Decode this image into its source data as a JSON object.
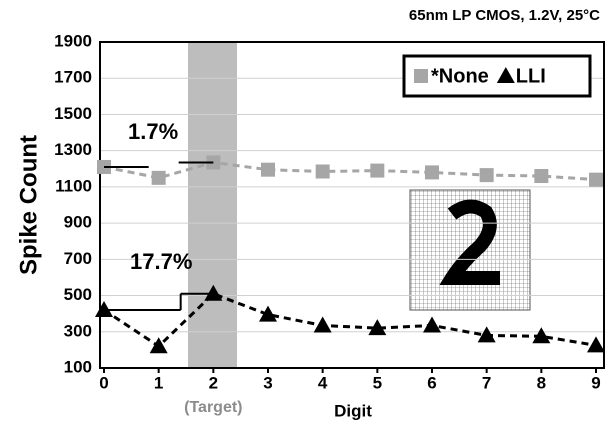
{
  "chart_data": {
    "type": "line",
    "title": "65nm LP CMOS, 1.2V, 25°C",
    "x_label": "Digit",
    "y_label": "Spike Count",
    "x": [
      0,
      1,
      2,
      3,
      4,
      5,
      6,
      7,
      8,
      9
    ],
    "xlim": [
      0,
      9
    ],
    "xticks": [
      0,
      1,
      2,
      3,
      4,
      5,
      6,
      7,
      8,
      9
    ],
    "ylim": [
      100,
      1900
    ],
    "yticks": [
      100,
      300,
      500,
      700,
      900,
      1100,
      1300,
      1500,
      1700,
      1900
    ],
    "grid": true,
    "legend": "upper right",
    "series": [
      {
        "name": "*None",
        "color": "#a6a6a6",
        "marker": "square",
        "values": [
          1210,
          1150,
          1235,
          1195,
          1185,
          1190,
          1180,
          1165,
          1160,
          1140
        ]
      },
      {
        "name": "LLI",
        "color": "#000000",
        "marker": "triangle",
        "values": [
          420,
          220,
          510,
          395,
          335,
          320,
          335,
          280,
          275,
          225
        ]
      }
    ],
    "annotations": [
      "1.7%",
      "17.7%",
      "(Target)"
    ]
  }
}
